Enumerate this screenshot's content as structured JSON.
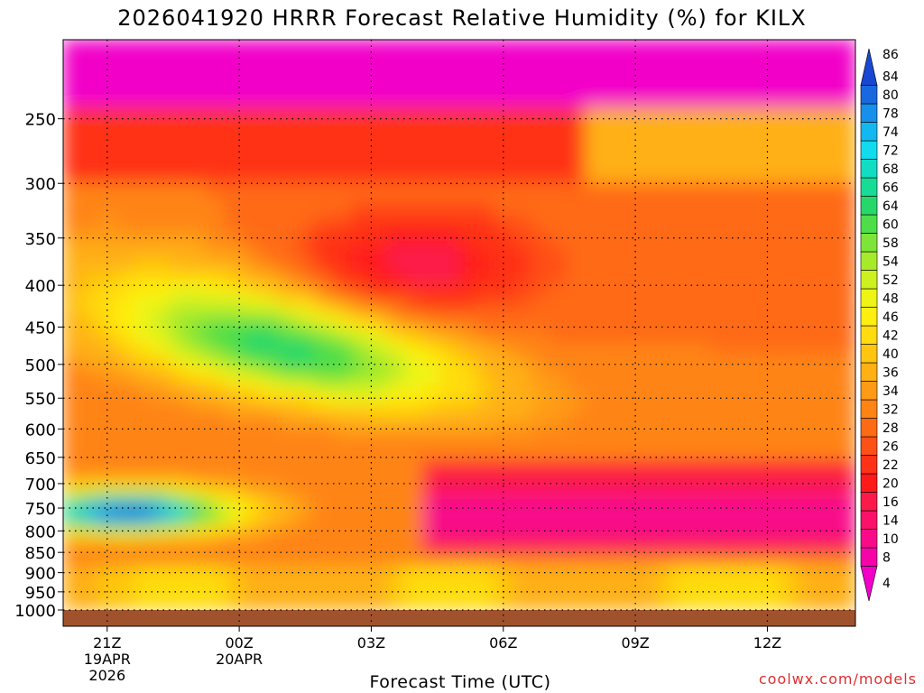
{
  "chart_data": {
    "type": "heatmap",
    "title": "2026041920 HRRR Forecast Relative Humidity (%) for KILX",
    "xlabel": "Forecast Time (UTC)",
    "ylabel": "",
    "credit": "coolwx.com/models",
    "x_ticks": [
      {
        "label": "21Z",
        "sub": [
          "19APR",
          "2026"
        ],
        "hour": 0
      },
      {
        "label": "00Z",
        "sub": [
          "20APR"
        ],
        "hour": 3
      },
      {
        "label": "03Z",
        "sub": [],
        "hour": 6
      },
      {
        "label": "06Z",
        "sub": [],
        "hour": 9
      },
      {
        "label": "09Z",
        "sub": [],
        "hour": 12
      },
      {
        "label": "12Z",
        "sub": [],
        "hour": 15
      }
    ],
    "xlim_hours": [
      -1,
      17
    ],
    "y_ticks": [
      "250",
      "300",
      "350",
      "400",
      "450",
      "500",
      "550",
      "600",
      "650",
      "700",
      "750",
      "800",
      "850",
      "900",
      "950",
      "1000"
    ],
    "ylim_hpa": [
      1000,
      200
    ],
    "grid": true,
    "colorbar": {
      "levels": [
        4,
        8,
        10,
        14,
        16,
        20,
        22,
        26,
        28,
        32,
        34,
        36,
        40,
        42,
        46,
        48,
        52,
        54,
        58,
        60,
        64,
        66,
        68,
        72,
        74,
        78,
        80,
        84,
        86
      ],
      "colors": [
        "#f200c8",
        "#f505a8",
        "#f80a8a",
        "#fa126a",
        "#fc1a4a",
        "#ff1a1a",
        "#ff3218",
        "#ff5016",
        "#ff6a14",
        "#ff8414",
        "#ff9a14",
        "#ffb012",
        "#ffc610",
        "#ffdc10",
        "#ffee10",
        "#eef414",
        "#ccf020",
        "#a6ea2a",
        "#7ee438",
        "#4ede4a",
        "#26d86a",
        "#16dc96",
        "#12dcc2",
        "#10dcee",
        "#14b8f0",
        "#1690ea",
        "#1a68e0",
        "#1848d2"
      ],
      "placement": "right"
    },
    "ground_color": "#a0522d",
    "features": [
      {
        "name": "upper-dry-layer",
        "p": [
          200,
          250
        ],
        "rh": 10
      },
      {
        "name": "mid-level-moist-band",
        "rh": 60
      },
      {
        "name": "low-level-moist-core",
        "p": [
          720,
          800
        ],
        "rh": 82
      },
      {
        "name": "dry-slot",
        "p": [
          330,
          450
        ],
        "rh": 22
      },
      {
        "name": "boundary-layer",
        "p": [
          900,
          1000
        ],
        "rh": 40
      }
    ]
  }
}
